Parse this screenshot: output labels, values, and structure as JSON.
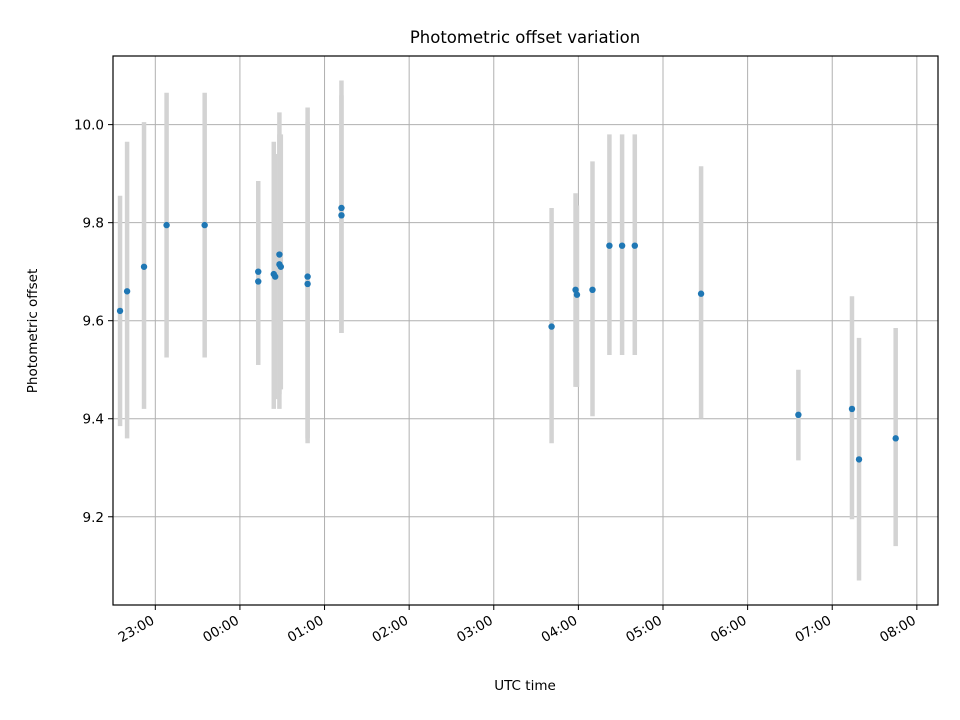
{
  "chart_data": {
    "type": "scatter",
    "title": "Photometric offset variation",
    "xlabel": "UTC time",
    "ylabel": "Photometric offset",
    "x_tick_labels": [
      "23:00",
      "00:00",
      "01:00",
      "02:00",
      "03:00",
      "04:00",
      "05:00",
      "06:00",
      "07:00",
      "08:00"
    ],
    "y_tick_labels": [
      "9.2",
      "9.4",
      "9.6",
      "9.8",
      "10.0"
    ],
    "y_ticks": [
      9.2,
      9.4,
      9.6,
      9.8,
      10.0
    ],
    "xlim": [
      "22:30",
      "08:15"
    ],
    "ylim": [
      9.02,
      10.14
    ],
    "grid": true,
    "point_color": "#1f77b4",
    "errorbar_color": "#d3d3d3",
    "points": [
      {
        "x": "22:35",
        "y": 9.62,
        "ylow": 9.385,
        "yhigh": 9.855
      },
      {
        "x": "22:40",
        "y": 9.66,
        "ylow": 9.36,
        "yhigh": 9.965
      },
      {
        "x": "22:52",
        "y": 9.71,
        "ylow": 9.42,
        "yhigh": 10.005
      },
      {
        "x": "23:08",
        "y": 9.795,
        "ylow": 9.525,
        "yhigh": 10.065
      },
      {
        "x": "23:35",
        "y": 9.795,
        "ylow": 9.525,
        "yhigh": 10.065
      },
      {
        "x": "00:13",
        "y": 9.7,
        "ylow": 9.51,
        "yhigh": 9.885
      },
      {
        "x": "00:13",
        "y": 9.68,
        "ylow": 9.51,
        "yhigh": 9.86
      },
      {
        "x": "00:24",
        "y": 9.695,
        "ylow": 9.42,
        "yhigh": 9.965
      },
      {
        "x": "00:25",
        "y": 9.69,
        "ylow": 9.44,
        "yhigh": 9.94
      },
      {
        "x": "00:28",
        "y": 9.735,
        "ylow": 9.45,
        "yhigh": 10.025
      },
      {
        "x": "00:28",
        "y": 9.715,
        "ylow": 9.42,
        "yhigh": 9.98
      },
      {
        "x": "00:29",
        "y": 9.71,
        "ylow": 9.46,
        "yhigh": 9.98
      },
      {
        "x": "00:48",
        "y": 9.69,
        "ylow": 9.35,
        "yhigh": 10.035
      },
      {
        "x": "00:48",
        "y": 9.675,
        "ylow": 9.36,
        "yhigh": 10.005
      },
      {
        "x": "01:12",
        "y": 9.83,
        "ylow": 9.575,
        "yhigh": 10.09
      },
      {
        "x": "01:12",
        "y": 9.815,
        "ylow": 9.575,
        "yhigh": 10.06
      },
      {
        "x": "03:41",
        "y": 9.588,
        "ylow": 9.35,
        "yhigh": 9.83
      },
      {
        "x": "03:58",
        "y": 9.663,
        "ylow": 9.465,
        "yhigh": 9.86
      },
      {
        "x": "03:59",
        "y": 9.653,
        "ylow": 9.465,
        "yhigh": 9.835
      },
      {
        "x": "04:10",
        "y": 9.663,
        "ylow": 9.405,
        "yhigh": 9.925
      },
      {
        "x": "04:22",
        "y": 9.753,
        "ylow": 9.53,
        "yhigh": 9.98
      },
      {
        "x": "04:31",
        "y": 9.753,
        "ylow": 9.53,
        "yhigh": 9.98
      },
      {
        "x": "04:40",
        "y": 9.753,
        "ylow": 9.53,
        "yhigh": 9.98
      },
      {
        "x": "05:27",
        "y": 9.655,
        "ylow": 9.4,
        "yhigh": 9.915
      },
      {
        "x": "06:36",
        "y": 9.408,
        "ylow": 9.315,
        "yhigh": 9.5
      },
      {
        "x": "07:14",
        "y": 9.42,
        "ylow": 9.195,
        "yhigh": 9.65
      },
      {
        "x": "07:19",
        "y": 9.317,
        "ylow": 9.07,
        "yhigh": 9.565
      },
      {
        "x": "07:45",
        "y": 9.36,
        "ylow": 9.14,
        "yhigh": 9.585
      }
    ]
  }
}
